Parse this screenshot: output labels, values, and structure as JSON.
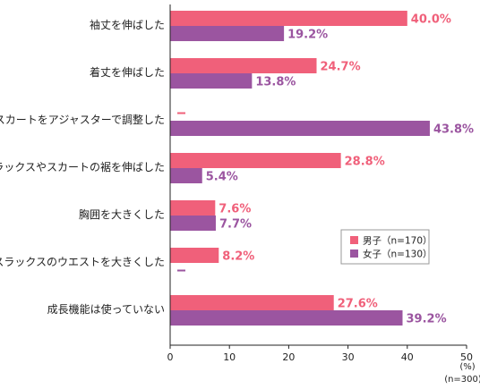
{
  "chart_data": {
    "type": "bar",
    "orientation": "horizontal",
    "categories": [
      "袖丈を伸ばした",
      "着丈を伸ばした",
      "スカートをアジャスターで調整した",
      "スラックスやスカートの裾を伸ばした",
      "胸囲を大きくした",
      "スラックスのウエストを大きくした",
      "成長機能は使っていない"
    ],
    "series": [
      {
        "name": "男子（n=170）",
        "color": "#f0607a",
        "values": [
          40.0,
          24.7,
          null,
          28.8,
          7.6,
          8.2,
          27.6
        ],
        "labels": [
          "40.0%",
          "24.7%",
          "—",
          "28.8%",
          "7.6%",
          "8.2%",
          "27.6%"
        ]
      },
      {
        "name": "女子（n=130）",
        "color": "#9b55a0",
        "values": [
          19.2,
          13.8,
          43.8,
          5.4,
          7.7,
          null,
          39.2
        ],
        "labels": [
          "19.2%",
          "13.8%",
          "43.8%",
          "5.4%",
          "7.7%",
          "—",
          "39.2%"
        ]
      }
    ],
    "xlim": [
      0,
      50
    ],
    "xticks": [
      "0",
      "10",
      "20",
      "30",
      "40",
      "50"
    ],
    "unit": "(%)",
    "sample_note": "(n=300)",
    "legend_position": "right",
    "grid": false
  }
}
